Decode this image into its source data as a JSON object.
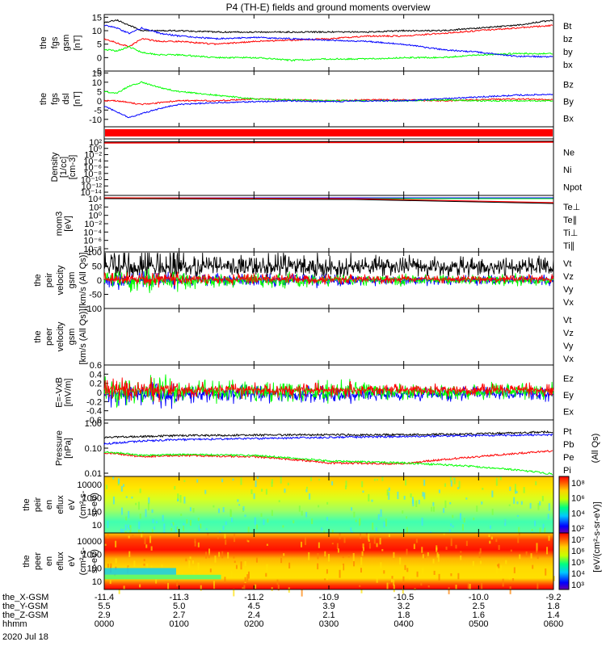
{
  "title": "P4 (TH-E) fields and ground moments overview",
  "date_label": "2020 Jul 18",
  "colors": {
    "black": "#000000",
    "red": "#ff0000",
    "green": "#00ff00",
    "blue": "#0000ff"
  },
  "chart_data": [
    {
      "type": "line",
      "panel": "fgs_gsm",
      "ylabel": [
        "the",
        "fgs",
        "gsm",
        "[nT]"
      ],
      "yticks": [
        15,
        10,
        5,
        0,
        -5
      ],
      "ylim": [
        -5,
        16
      ],
      "legend": [
        {
          "name": "Bt",
          "color": "#000000"
        },
        {
          "name": "bz",
          "color": "#ff0000"
        },
        {
          "name": "by",
          "color": "#00ff00"
        },
        {
          "name": "bx",
          "color": "#0000ff"
        }
      ],
      "series": [
        {
          "name": "Bt",
          "x": [
            0,
            10,
            20,
            30,
            45,
            60,
            90,
            120,
            150,
            180,
            210,
            240,
            270,
            300,
            330,
            360
          ],
          "values": [
            13,
            14,
            12,
            10,
            10,
            10,
            9.5,
            9.5,
            9.5,
            9.5,
            9.5,
            10,
            10,
            11,
            12,
            14
          ]
        },
        {
          "name": "bz",
          "x": [
            0,
            10,
            20,
            30,
            45,
            60,
            90,
            120,
            150,
            180,
            210,
            240,
            270,
            300,
            330,
            360
          ],
          "values": [
            7,
            5.5,
            4,
            7,
            6,
            6,
            5,
            6,
            6.5,
            7,
            8,
            8,
            9,
            10,
            11,
            12
          ]
        },
        {
          "name": "by",
          "x": [
            0,
            10,
            20,
            30,
            45,
            60,
            90,
            120,
            150,
            180,
            210,
            240,
            270,
            300,
            330,
            360
          ],
          "values": [
            3,
            2.5,
            4,
            2,
            1,
            1,
            0,
            0,
            -1,
            -0.5,
            -0.5,
            0,
            0,
            1,
            1.5,
            1.5
          ]
        },
        {
          "name": "bx",
          "x": [
            0,
            10,
            20,
            30,
            45,
            60,
            90,
            120,
            150,
            180,
            210,
            240,
            270,
            300,
            330,
            360
          ],
          "values": [
            12,
            11,
            9,
            11,
            9,
            8,
            7,
            7.5,
            7,
            6.5,
            6,
            5,
            3,
            2,
            0.5,
            0.3
          ]
        }
      ]
    },
    {
      "type": "line",
      "panel": "fgs_dsl",
      "ylabel": [
        "the",
        "fgs",
        "dsl",
        "[nT]"
      ],
      "yticks": [
        15,
        10,
        5,
        0,
        -5,
        -10
      ],
      "ylim": [
        -14,
        16
      ],
      "legend": [
        {
          "name": "Bz",
          "color": "#ff0000"
        },
        {
          "name": "By",
          "color": "#00ff00"
        },
        {
          "name": "Bx",
          "color": "#0000ff"
        }
      ],
      "series": [
        {
          "name": "Bz",
          "x": [
            0,
            10,
            20,
            30,
            45,
            60,
            90,
            120,
            150,
            180,
            210,
            240,
            270,
            300,
            330,
            360
          ],
          "values": [
            0,
            0,
            -1,
            -2,
            -1,
            0,
            0,
            1,
            0.5,
            0,
            0.5,
            0.5,
            0,
            0.5,
            1,
            0.5
          ]
        },
        {
          "name": "By",
          "x": [
            0,
            10,
            20,
            30,
            45,
            60,
            90,
            120,
            150,
            180,
            210,
            240,
            270,
            300,
            330,
            360
          ],
          "values": [
            5,
            4,
            8,
            10,
            7,
            5,
            3,
            1,
            0.5,
            0,
            0,
            0,
            0.5,
            0,
            0,
            0
          ]
        },
        {
          "name": "Bx",
          "x": [
            0,
            10,
            20,
            30,
            45,
            60,
            90,
            120,
            150,
            180,
            210,
            240,
            270,
            300,
            330,
            360
          ],
          "values": [
            -3,
            -6,
            -9,
            -7,
            -4,
            -2,
            -1,
            -0.5,
            0,
            -0.5,
            0,
            0,
            1,
            2,
            3,
            3.5
          ]
        }
      ]
    },
    {
      "type": "line",
      "panel": "density",
      "ylabel": [
        "Density",
        "[1/cc]",
        "[cm-3]"
      ],
      "yticks_labels": [
        "10^2",
        "10^0",
        "10^-2",
        "10^-4",
        "10^-6",
        "10^-8",
        "10^-10",
        "10^-12",
        "10^-14"
      ],
      "legend": [
        {
          "name": "Ne",
          "color": "#ff0000"
        },
        {
          "name": "Ni",
          "color": "#000000"
        },
        {
          "name": "Npot",
          "color": "#0000ff"
        }
      ]
    },
    {
      "type": "line",
      "panel": "temperature",
      "ylabel": [
        "mom3",
        "[eV]"
      ],
      "yticks_labels": [
        "10^4",
        "10^2",
        "10^0",
        "10^-2",
        "10^-4",
        "10^-6",
        "10^-8"
      ],
      "legend": [
        {
          "name": "Te⊥",
          "color": "#ff0000"
        },
        {
          "name": "Te∥",
          "color": "#000000"
        },
        {
          "name": "Ti⊥",
          "color": "#0000ff"
        },
        {
          "name": "Ti∥",
          "color": "#00ff00"
        }
      ]
    },
    {
      "type": "line",
      "panel": "peir_velocity",
      "ylabel": [
        "the",
        "peir",
        "velocity",
        "gsm",
        "[km/s (All Qs)]"
      ],
      "yticks": [
        100,
        50,
        0,
        -50,
        -100
      ],
      "ylim": [
        -100,
        100
      ],
      "legend": [
        {
          "name": "Vt",
          "color": "#000000"
        },
        {
          "name": "Vz",
          "color": "#ff0000"
        },
        {
          "name": "Vy",
          "color": "#00ff00"
        },
        {
          "name": "Vx",
          "color": "#0000ff"
        }
      ]
    },
    {
      "type": "line",
      "panel": "peer_velocity",
      "ylabel": [
        "the",
        "peer",
        "velocity",
        "gsm",
        "[km/s (All Qs)]"
      ],
      "legend": [
        {
          "name": "Vt",
          "color": "#000000"
        },
        {
          "name": "Vz",
          "color": "#ff0000"
        },
        {
          "name": "Vy",
          "color": "#00ff00"
        },
        {
          "name": "Vx",
          "color": "#0000ff"
        }
      ]
    },
    {
      "type": "line",
      "panel": "efield",
      "ylabel": [
        "E=-VxB",
        "[mV/m]"
      ],
      "yticks": [
        0.6,
        0.4,
        0.2,
        0.0,
        -0.2,
        -0.4,
        -0.6
      ],
      "ylim": [
        -0.6,
        0.6
      ],
      "legend": [
        {
          "name": "Ez",
          "color": "#ff0000"
        },
        {
          "name": "Ey",
          "color": "#00ff00"
        },
        {
          "name": "Ex",
          "color": "#0000ff"
        }
      ]
    },
    {
      "type": "line",
      "panel": "pressure",
      "ylabel": [
        "Pressure",
        "[nPa]"
      ],
      "yscale": "log",
      "yticks_labels": [
        "1.00",
        "0.10",
        "0.01"
      ],
      "ylim": [
        0.01,
        1.0
      ],
      "legend": [
        {
          "name": "Pt",
          "color": "#000000"
        },
        {
          "name": "Pb",
          "color": "#ff0000"
        },
        {
          "name": "Pe",
          "color": "#00ff00"
        },
        {
          "name": "Pi",
          "color": "#0000ff"
        }
      ],
      "legend_note": "(All Qs)",
      "series": [
        {
          "name": "Pt",
          "x": [
            0,
            30,
            60,
            120,
            180,
            240,
            300,
            360
          ],
          "values": [
            0.24,
            0.26,
            0.28,
            0.29,
            0.3,
            0.3,
            0.32,
            0.38
          ]
        },
        {
          "name": "Pb",
          "x": [
            0,
            30,
            60,
            120,
            180,
            240,
            300,
            360
          ],
          "values": [
            0.07,
            0.05,
            0.055,
            0.05,
            0.03,
            0.028,
            0.05,
            0.08
          ]
        },
        {
          "name": "Pe",
          "x": [
            0,
            30,
            60,
            120,
            180,
            240,
            300,
            360
          ],
          "values": [
            0.075,
            0.055,
            0.06,
            0.055,
            0.035,
            0.03,
            0.022,
            0.012
          ]
        },
        {
          "name": "Pi",
          "x": [
            0,
            30,
            60,
            120,
            180,
            240,
            300,
            360
          ],
          "values": [
            0.14,
            0.18,
            0.2,
            0.22,
            0.24,
            0.26,
            0.28,
            0.3
          ]
        }
      ]
    },
    {
      "type": "heatmap",
      "panel": "peir_eflux",
      "ylabel": [
        "the",
        "peir",
        "en",
        "eflux",
        "eV",
        "(cm^2-s-",
        "sr-eV)"
      ],
      "yticks": [
        "10000",
        "1000",
        "100",
        "10"
      ],
      "colorbar_ticks": [
        "10^8",
        "10^6",
        "10^4",
        "10^2"
      ]
    },
    {
      "type": "heatmap",
      "panel": "peer_eflux",
      "ylabel": [
        "the",
        "peer",
        "en",
        "eflux",
        "eV",
        "(cm^2-s-",
        "sr-eV)"
      ],
      "yticks": [
        "10000",
        "1000",
        "100",
        "10"
      ],
      "colorbar_ticks": [
        "10^7",
        "10^6",
        "10^5",
        "10^4",
        "10^3"
      ],
      "colorbar_label": "[eV/(cm^2-s-sr-eV)]"
    }
  ],
  "x_axis": {
    "tick_minutes": [
      0,
      60,
      120,
      180,
      240,
      300,
      360
    ],
    "rows": [
      {
        "label": "the_X-GSM",
        "values": [
          "-11.4",
          "-11.3",
          "-11.2",
          "-10.9",
          "-10.5",
          "-10.0",
          "-9.2"
        ]
      },
      {
        "label": "the_Y-GSM",
        "values": [
          "5.5",
          "5.0",
          "4.5",
          "3.9",
          "3.2",
          "2.5",
          "1.8"
        ]
      },
      {
        "label": "the_Z-GSM",
        "values": [
          "2.9",
          "2.7",
          "2.4",
          "2.1",
          "1.8",
          "1.6",
          "1.4"
        ]
      },
      {
        "label": "hhmm",
        "values": [
          "0000",
          "0100",
          "0200",
          "0300",
          "0400",
          "0500",
          "0600"
        ]
      }
    ]
  }
}
